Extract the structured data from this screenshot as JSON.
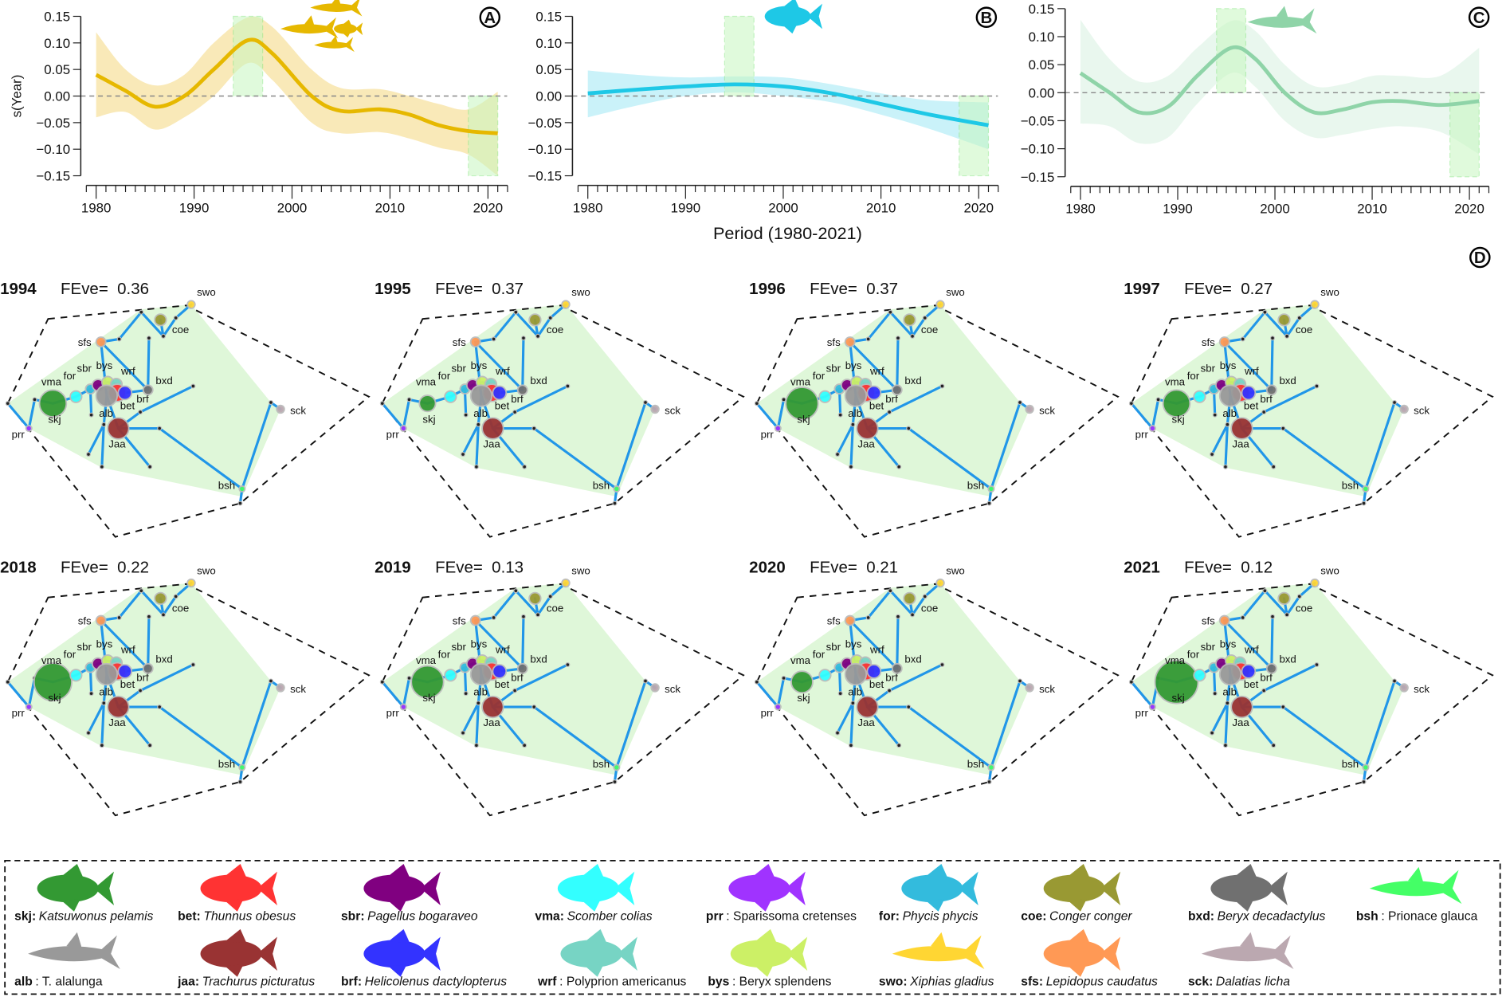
{
  "chart_data": [
    {
      "type": "line",
      "panel_label": "A",
      "ylabel": "s(Year)",
      "xlim": [
        1980,
        2021
      ],
      "ylim": [
        -0.15,
        0.15
      ],
      "xticks": [
        "1980",
        "1990",
        "2000",
        "2010",
        "2020"
      ],
      "yticks": [
        "0.15",
        "0.10",
        "0.05",
        "0.00",
        "−0.05",
        "−0.10",
        "−0.15"
      ],
      "color": "#e6b800",
      "band_color": "#f7e3a6",
      "x": [
        1980,
        1983,
        1986,
        1989,
        1992,
        1995.5,
        1998,
        2002,
        2005,
        2009,
        2012,
        2015,
        2018,
        2021
      ],
      "y": [
        0.04,
        0.01,
        -0.02,
        0.0,
        0.05,
        0.105,
        0.08,
        0.0,
        -0.028,
        -0.025,
        -0.035,
        -0.055,
        -0.066,
        -0.07
      ],
      "upper": [
        0.12,
        0.05,
        0.02,
        0.04,
        0.1,
        0.148,
        0.13,
        0.05,
        0.015,
        0.013,
        0.0,
        -0.015,
        -0.025,
        0.008
      ],
      "lower": [
        -0.04,
        -0.03,
        -0.063,
        -0.04,
        0.0,
        0.062,
        0.03,
        -0.05,
        -0.07,
        -0.068,
        -0.08,
        -0.097,
        -0.11,
        -0.15
      ],
      "highlights": [
        {
          "x": [
            1994,
            1997
          ],
          "y": [
            0,
            0.15
          ]
        },
        {
          "x": [
            2018,
            2021
          ],
          "y": [
            -0.15,
            0
          ]
        }
      ]
    },
    {
      "type": "line",
      "panel_label": "B",
      "xlabel": "Period (1980-2021)",
      "xlim": [
        1980,
        2021
      ],
      "ylim": [
        -0.15,
        0.15
      ],
      "xticks": [
        "1980",
        "1990",
        "2000",
        "2010",
        "2020"
      ],
      "yticks": [
        "0.15",
        "0.10",
        "0.05",
        "0.00",
        "−0.05",
        "−0.10",
        "−0.15"
      ],
      "color": "#1ec8e6",
      "band_color": "#bdeff7",
      "x": [
        1980,
        1985,
        1990,
        1995,
        2000,
        2005,
        2010,
        2015,
        2021
      ],
      "y": [
        0.005,
        0.012,
        0.018,
        0.022,
        0.018,
        0.005,
        -0.015,
        -0.035,
        -0.055
      ],
      "upper": [
        0.048,
        0.04,
        0.035,
        0.037,
        0.035,
        0.022,
        0.005,
        -0.008,
        -0.012
      ],
      "lower": [
        -0.04,
        -0.018,
        0.0,
        0.007,
        0.0,
        -0.012,
        -0.035,
        -0.062,
        -0.1
      ],
      "highlights": [
        {
          "x": [
            1994,
            1997
          ],
          "y": [
            0,
            0.15
          ]
        },
        {
          "x": [
            2018,
            2021
          ],
          "y": [
            -0.15,
            0
          ]
        }
      ]
    },
    {
      "type": "line",
      "panel_label": "C",
      "xlim": [
        1980,
        2021
      ],
      "ylim": [
        -0.15,
        0.15
      ],
      "xticks": [
        "1980",
        "1990",
        "2000",
        "2010",
        "2020"
      ],
      "yticks": [
        "0.15",
        "0.10",
        "0.05",
        "0.00",
        "−0.05",
        "−0.10",
        "−0.15"
      ],
      "color": "#8fd4a8",
      "band_color": "#e4f5ea",
      "x": [
        1980,
        1983,
        1986,
        1989,
        1992,
        1995.5,
        1998,
        2001,
        2004,
        2007,
        2010,
        2013,
        2017,
        2021
      ],
      "y": [
        0.035,
        0.0,
        -0.035,
        -0.025,
        0.03,
        0.08,
        0.06,
        0.0,
        -0.035,
        -0.03,
        -0.017,
        -0.015,
        -0.022,
        -0.015
      ],
      "upper": [
        0.13,
        0.06,
        0.02,
        0.03,
        0.08,
        0.128,
        0.11,
        0.05,
        0.012,
        0.015,
        0.03,
        0.03,
        0.03,
        0.08
      ],
      "lower": [
        -0.055,
        -0.06,
        -0.09,
        -0.08,
        -0.02,
        0.035,
        0.01,
        -0.05,
        -0.08,
        -0.075,
        -0.065,
        -0.06,
        -0.07,
        -0.11
      ],
      "highlights": [
        {
          "x": [
            1994,
            1997
          ],
          "y": [
            0,
            0.15
          ]
        },
        {
          "x": [
            2018,
            2021
          ],
          "y": [
            -0.15,
            0
          ]
        }
      ]
    }
  ],
  "network": {
    "panel_label": "D",
    "fundi_label": "FEve=",
    "panels": [
      {
        "year": "1994",
        "feve": "0.36"
      },
      {
        "year": "1995",
        "feve": "0.37"
      },
      {
        "year": "1996",
        "feve": "0.37"
      },
      {
        "year": "1997",
        "feve": "0.27"
      },
      {
        "year": "2018",
        "feve": "0.22"
      },
      {
        "year": "2019",
        "feve": "0.13"
      },
      {
        "year": "2020",
        "feve": "0.21"
      },
      {
        "year": "2021",
        "feve": "0.12"
      }
    ],
    "hull_color": "#dff7d9",
    "edge_color": "#2196e8"
  },
  "legend": {
    "species": [
      {
        "code": "skj:",
        "name": "Katsuwonus pelamis",
        "color": "#339933"
      },
      {
        "code": "bet:",
        "name": "Thunnus obesus",
        "color": "#ff3333"
      },
      {
        "code": "sbr:",
        "name": "Pagellus bogaraveo",
        "color": "#800080"
      },
      {
        "code": "vma:",
        "name": "Scomber colias",
        "color": "#33ffff"
      },
      {
        "code": "prr",
        "name": ": Sparissoma cretenses",
        "color": "#a033ff"
      },
      {
        "code": "for:",
        "name": "Phycis phycis",
        "color": "#33bbdd"
      },
      {
        "code": "coe:",
        "name": "Conger conger",
        "color": "#999933"
      },
      {
        "code": "bxd:",
        "name": "Beryx decadactylus",
        "color": "#707070"
      },
      {
        "code": "bsh",
        "name": ": Prionace glauca",
        "color": "#44ff66"
      },
      {
        "code": "alb",
        "name": ": T. alalunga",
        "color": "#999999"
      },
      {
        "code": "jaa:",
        "name": "Trachurus picturatus",
        "color": "#993333"
      },
      {
        "code": "brf:",
        "name": "Helicolenus dactylopterus",
        "color": "#3333ff"
      },
      {
        "code": "wrf",
        "name": ": Polyprion americanus",
        "color": "#77d4c4"
      },
      {
        "code": "bys",
        "name": ": Beryx splendens",
        "color": "#ccf066"
      },
      {
        "code": "swo:",
        "name": "Xiphias gladius",
        "color": "#ffd633"
      },
      {
        "code": "sfs:",
        "name": "Lepidopus caudatus",
        "color": "#ff9955"
      },
      {
        "code": "sck:",
        "name": "Dalatias licha",
        "color": "#bba8b0"
      }
    ]
  }
}
